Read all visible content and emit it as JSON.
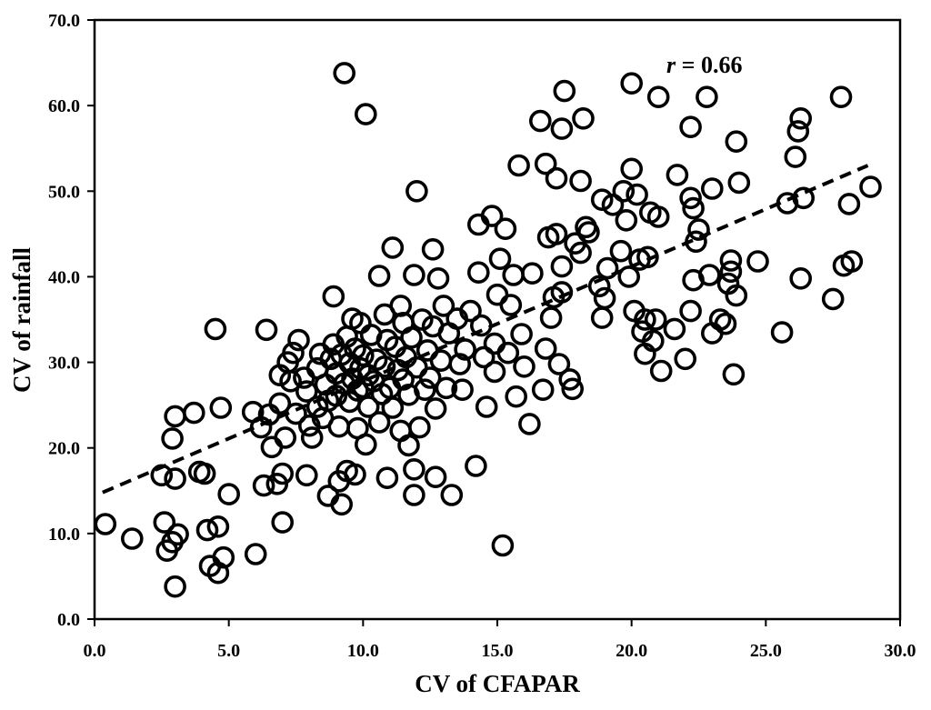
{
  "chart_data": {
    "type": "scatter",
    "xlabel": "CV of CFAPAR",
    "ylabel": "CV of rainfall",
    "xlim": [
      0,
      30
    ],
    "ylim": [
      0,
      70
    ],
    "x_ticks": [
      "0.0",
      "5.0",
      "10.0",
      "15.0",
      "20.0",
      "25.0",
      "30.0"
    ],
    "y_ticks": [
      "0.0",
      "10.0",
      "20.0",
      "30.0",
      "40.0",
      "50.0",
      "60.0",
      "70.0"
    ],
    "grid": false,
    "marker": "open-circle",
    "annotation": {
      "italic": "r",
      "rest": " = 0.66"
    },
    "trendline": {
      "style": "dashed",
      "x": [
        0.3,
        28.8
      ],
      "y": [
        14.8,
        53.0
      ]
    },
    "points": [
      [
        0.4,
        11.1
      ],
      [
        1.4,
        9.4
      ],
      [
        2.5,
        16.8
      ],
      [
        2.6,
        11.3
      ],
      [
        2.7,
        8.0
      ],
      [
        2.9,
        9.0
      ],
      [
        2.9,
        21.1
      ],
      [
        3.0,
        23.7
      ],
      [
        3.0,
        16.4
      ],
      [
        3.0,
        3.8
      ],
      [
        3.1,
        9.9
      ],
      [
        3.7,
        24.1
      ],
      [
        3.9,
        17.2
      ],
      [
        4.1,
        17.0
      ],
      [
        4.2,
        10.4
      ],
      [
        4.3,
        6.2
      ],
      [
        4.5,
        33.9
      ],
      [
        4.6,
        10.8
      ],
      [
        4.6,
        5.4
      ],
      [
        4.7,
        24.7
      ],
      [
        4.8,
        7.2
      ],
      [
        5.0,
        14.6
      ],
      [
        5.9,
        24.2
      ],
      [
        6.0,
        7.6
      ],
      [
        6.2,
        22.4
      ],
      [
        6.3,
        15.6
      ],
      [
        6.4,
        33.8
      ],
      [
        6.5,
        23.9
      ],
      [
        6.6,
        20.1
      ],
      [
        6.8,
        15.8
      ],
      [
        6.9,
        28.5
      ],
      [
        6.9,
        25.2
      ],
      [
        7.0,
        11.3
      ],
      [
        7.0,
        17.0
      ],
      [
        7.1,
        21.2
      ],
      [
        7.2,
        30.0
      ],
      [
        7.3,
        27.8
      ],
      [
        7.4,
        31.1
      ],
      [
        7.5,
        24.0
      ],
      [
        7.6,
        32.6
      ],
      [
        7.8,
        28.2
      ],
      [
        7.9,
        26.6
      ],
      [
        7.9,
        16.8
      ],
      [
        8.0,
        22.6
      ],
      [
        8.1,
        21.2
      ],
      [
        8.3,
        24.8
      ],
      [
        8.3,
        29.3
      ],
      [
        8.4,
        31.0
      ],
      [
        8.5,
        23.5
      ],
      [
        8.6,
        27.4
      ],
      [
        8.7,
        14.4
      ],
      [
        8.7,
        25.5
      ],
      [
        8.8,
        30.4
      ],
      [
        8.9,
        37.7
      ],
      [
        8.9,
        32.1
      ],
      [
        9.0,
        26.1
      ],
      [
        9.0,
        28.7
      ],
      [
        9.1,
        16.1
      ],
      [
        9.1,
        22.5
      ],
      [
        9.2,
        13.4
      ],
      [
        9.2,
        30.9
      ],
      [
        9.3,
        27.5
      ],
      [
        9.3,
        63.8
      ],
      [
        9.4,
        33.0
      ],
      [
        9.4,
        17.3
      ],
      [
        9.5,
        25.4
      ],
      [
        9.5,
        29.9
      ],
      [
        9.6,
        28.1
      ],
      [
        9.6,
        35.1
      ],
      [
        9.7,
        31.6
      ],
      [
        9.7,
        16.9
      ],
      [
        9.8,
        22.3
      ],
      [
        9.8,
        26.7
      ],
      [
        9.9,
        34.6
      ],
      [
        9.9,
        29.3
      ],
      [
        10.0,
        27.1
      ],
      [
        10.0,
        30.8
      ],
      [
        10.1,
        59.0
      ],
      [
        10.1,
        20.4
      ],
      [
        10.2,
        24.8
      ],
      [
        10.2,
        28.5
      ],
      [
        10.3,
        33.2
      ],
      [
        10.4,
        27.8
      ],
      [
        10.5,
        30.3
      ],
      [
        10.6,
        23.0
      ],
      [
        10.6,
        40.1
      ],
      [
        10.7,
        26.3
      ],
      [
        10.8,
        35.6
      ],
      [
        10.8,
        29.5
      ],
      [
        10.9,
        16.5
      ],
      [
        10.9,
        32.6
      ],
      [
        11.0,
        27.0
      ],
      [
        11.1,
        43.4
      ],
      [
        11.1,
        24.7
      ],
      [
        11.2,
        31.8
      ],
      [
        11.3,
        29.1
      ],
      [
        11.4,
        36.6
      ],
      [
        11.4,
        22.0
      ],
      [
        11.5,
        28.0
      ],
      [
        11.5,
        34.6
      ],
      [
        11.6,
        30.6
      ],
      [
        11.7,
        20.3
      ],
      [
        11.7,
        26.2
      ],
      [
        11.8,
        32.9
      ],
      [
        11.9,
        17.5
      ],
      [
        11.9,
        14.5
      ],
      [
        11.9,
        40.2
      ],
      [
        12.0,
        50.0
      ],
      [
        12.0,
        29.4
      ],
      [
        12.1,
        22.4
      ],
      [
        12.2,
        35.0
      ],
      [
        12.3,
        26.8
      ],
      [
        12.4,
        31.4
      ],
      [
        12.5,
        28.2
      ],
      [
        12.6,
        34.2
      ],
      [
        12.6,
        43.2
      ],
      [
        12.7,
        24.6
      ],
      [
        12.7,
        16.6
      ],
      [
        12.8,
        39.8
      ],
      [
        12.9,
        30.2
      ],
      [
        13.0,
        36.6
      ],
      [
        13.1,
        27.0
      ],
      [
        13.2,
        33.4
      ],
      [
        13.3,
        14.5
      ],
      [
        13.5,
        35.1
      ],
      [
        13.6,
        29.8
      ],
      [
        13.7,
        26.8
      ],
      [
        13.8,
        31.5
      ],
      [
        14.0,
        36.0
      ],
      [
        14.2,
        17.9
      ],
      [
        14.3,
        46.1
      ],
      [
        14.3,
        40.5
      ],
      [
        14.4,
        34.3
      ],
      [
        14.5,
        30.6
      ],
      [
        14.6,
        24.8
      ],
      [
        14.8,
        47.1
      ],
      [
        14.9,
        32.2
      ],
      [
        14.9,
        28.9
      ],
      [
        15.0,
        37.9
      ],
      [
        15.1,
        42.1
      ],
      [
        15.2,
        8.6
      ],
      [
        15.3,
        45.6
      ],
      [
        15.4,
        31.1
      ],
      [
        15.5,
        36.7
      ],
      [
        15.6,
        40.2
      ],
      [
        15.7,
        26.0
      ],
      [
        15.8,
        53.0
      ],
      [
        15.9,
        33.3
      ],
      [
        16.0,
        29.5
      ],
      [
        16.2,
        22.8
      ],
      [
        16.3,
        40.4
      ],
      [
        16.6,
        58.2
      ],
      [
        16.7,
        26.8
      ],
      [
        16.8,
        31.6
      ],
      [
        16.8,
        53.2
      ],
      [
        16.9,
        44.6
      ],
      [
        17.0,
        35.2
      ],
      [
        17.1,
        37.6
      ],
      [
        17.2,
        51.5
      ],
      [
        17.2,
        45.0
      ],
      [
        17.3,
        29.8
      ],
      [
        17.4,
        38.2
      ],
      [
        17.4,
        41.2
      ],
      [
        17.4,
        57.3
      ],
      [
        17.5,
        61.7
      ],
      [
        17.7,
        28.0
      ],
      [
        17.8,
        26.9
      ],
      [
        17.9,
        43.9
      ],
      [
        18.1,
        51.2
      ],
      [
        18.1,
        42.8
      ],
      [
        18.2,
        58.5
      ],
      [
        18.3,
        45.8
      ],
      [
        18.4,
        45.2
      ],
      [
        18.8,
        38.9
      ],
      [
        18.9,
        35.2
      ],
      [
        18.9,
        49.0
      ],
      [
        19.0,
        37.5
      ],
      [
        19.1,
        41.0
      ],
      [
        19.3,
        48.4
      ],
      [
        19.6,
        43.0
      ],
      [
        19.7,
        50.0
      ],
      [
        19.8,
        46.6
      ],
      [
        19.9,
        40.0
      ],
      [
        20.0,
        62.6
      ],
      [
        20.0,
        52.6
      ],
      [
        20.1,
        36.0
      ],
      [
        20.2,
        49.6
      ],
      [
        20.3,
        42.0
      ],
      [
        20.4,
        33.6
      ],
      [
        20.5,
        35.0
      ],
      [
        20.5,
        31.0
      ],
      [
        20.6,
        42.3
      ],
      [
        20.7,
        47.5
      ],
      [
        20.8,
        32.5
      ],
      [
        20.9,
        35.0
      ],
      [
        21.0,
        47.0
      ],
      [
        21.0,
        61.0
      ],
      [
        21.1,
        29.0
      ],
      [
        21.6,
        33.9
      ],
      [
        21.7,
        51.9
      ],
      [
        22.0,
        30.4
      ],
      [
        22.2,
        57.5
      ],
      [
        22.2,
        49.2
      ],
      [
        22.2,
        36.0
      ],
      [
        22.3,
        48.0
      ],
      [
        22.3,
        39.6
      ],
      [
        22.4,
        44.1
      ],
      [
        22.5,
        45.5
      ],
      [
        22.8,
        61.0
      ],
      [
        22.9,
        40.2
      ],
      [
        23.0,
        50.3
      ],
      [
        23.0,
        33.4
      ],
      [
        23.3,
        35.0
      ],
      [
        23.5,
        34.5
      ],
      [
        23.6,
        39.2
      ],
      [
        23.7,
        41.9
      ],
      [
        23.7,
        40.6
      ],
      [
        23.8,
        28.6
      ],
      [
        23.9,
        37.8
      ],
      [
        23.9,
        55.8
      ],
      [
        24.0,
        51.0
      ],
      [
        24.7,
        41.8
      ],
      [
        25.6,
        33.5
      ],
      [
        25.8,
        48.6
      ],
      [
        26.1,
        54.0
      ],
      [
        26.2,
        57.0
      ],
      [
        26.3,
        58.5
      ],
      [
        26.3,
        39.8
      ],
      [
        26.4,
        49.2
      ],
      [
        27.5,
        37.4
      ],
      [
        27.8,
        61.0
      ],
      [
        27.9,
        41.3
      ],
      [
        28.1,
        48.5
      ],
      [
        28.2,
        41.8
      ],
      [
        28.9,
        50.5
      ]
    ]
  }
}
